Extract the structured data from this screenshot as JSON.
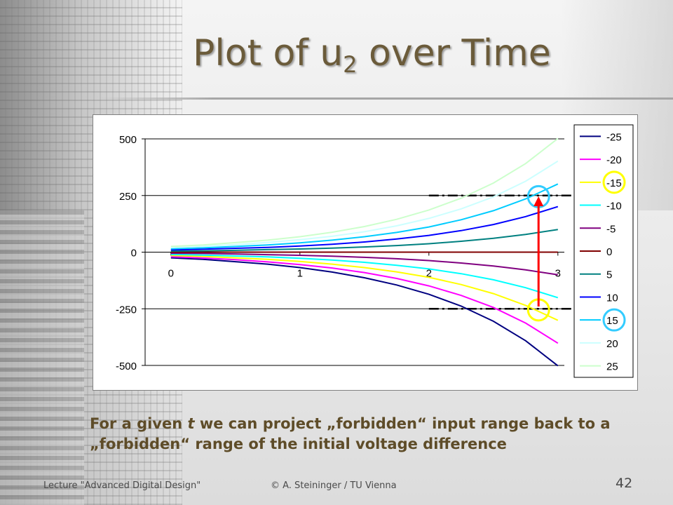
{
  "slide": {
    "title": "Plot of u",
    "title_subscript": "2",
    "title_suffix": " over Time",
    "caption_part1": "For a given ",
    "caption_italic": "t",
    "caption_part2": " we can project „forbidden“ input range back to a „forbidden“ range of the initial voltage difference",
    "footer_left": "Lecture \"Advanced Digital Design\"",
    "footer_center": "© A. Steininger / TU Vienna",
    "page_number": "42"
  },
  "chart_data": {
    "type": "line",
    "x": [
      0,
      0.25,
      0.5,
      0.75,
      1,
      1.25,
      1.5,
      1.75,
      2,
      2.25,
      2.5,
      2.75,
      3
    ],
    "xticks": [
      0,
      1,
      2,
      3
    ],
    "xtick_labels": [
      "0",
      "1",
      "2",
      "3"
    ],
    "yticks": [
      500,
      250,
      0,
      -250,
      -500
    ],
    "ytick_labels": [
      "500",
      "250",
      "0",
      "-250",
      "-500"
    ],
    "xlim": [
      -0.2,
      3.05
    ],
    "ylim": [
      -500,
      500
    ],
    "legend_position": "right",
    "series": [
      {
        "name": "-25",
        "color": "#000080",
        "values": [
          -25,
          -32,
          -42,
          -53,
          -68,
          -88,
          -113,
          -145,
          -186,
          -238,
          -305,
          -391,
          -502
        ]
      },
      {
        "name": "-20",
        "color": "#ff00ff",
        "values": [
          -20,
          -26,
          -33,
          -43,
          -55,
          -70,
          -90,
          -116,
          -149,
          -191,
          -244,
          -313,
          -402
        ]
      },
      {
        "name": "-15",
        "color": "#ffff00",
        "values": [
          -15,
          -19,
          -25,
          -32,
          -41,
          -53,
          -68,
          -87,
          -111,
          -143,
          -183,
          -235,
          -301
        ]
      },
      {
        "name": "-10",
        "color": "#00ffff",
        "values": [
          -10,
          -13,
          -17,
          -21,
          -27,
          -35,
          -45,
          -58,
          -74,
          -95,
          -122,
          -157,
          -201
        ]
      },
      {
        "name": "-5",
        "color": "#800080",
        "values": [
          -5,
          -6,
          -8,
          -11,
          -14,
          -18,
          -23,
          -29,
          -37,
          -48,
          -61,
          -78,
          -100
        ]
      },
      {
        "name": "0",
        "color": "#800000",
        "values": [
          0,
          0,
          0,
          0,
          0,
          0,
          0,
          0,
          0,
          0,
          0,
          0,
          0
        ]
      },
      {
        "name": "5",
        "color": "#008080",
        "values": [
          5,
          6,
          8,
          11,
          14,
          18,
          23,
          29,
          37,
          48,
          61,
          78,
          100
        ]
      },
      {
        "name": "10",
        "color": "#0000ff",
        "values": [
          10,
          13,
          17,
          21,
          27,
          35,
          45,
          58,
          74,
          95,
          122,
          157,
          201
        ]
      },
      {
        "name": "15",
        "color": "#00ccff",
        "values": [
          15,
          19,
          25,
          32,
          41,
          53,
          68,
          87,
          111,
          143,
          183,
          235,
          301
        ]
      },
      {
        "name": "20",
        "color": "#ccffff",
        "values": [
          20,
          26,
          33,
          43,
          55,
          70,
          90,
          116,
          149,
          191,
          244,
          313,
          402
        ]
      },
      {
        "name": "25",
        "color": "#ccffcc",
        "values": [
          25,
          32,
          42,
          53,
          68,
          88,
          113,
          145,
          186,
          238,
          305,
          391,
          502
        ]
      }
    ],
    "threshold_lines": [
      250,
      -250
    ],
    "arrow": {
      "x": 2.85,
      "from_y": -240,
      "to_y": 240,
      "color": "#ff0000"
    },
    "highlight_circles": [
      {
        "x": 2.85,
        "y": 245,
        "color": "#33ccff"
      },
      {
        "x": 2.85,
        "y": -255,
        "color": "#ffff00"
      }
    ],
    "highlighted_legend_entries": [
      {
        "name": "-15",
        "color": "#ffff00"
      },
      {
        "name": "15",
        "color": "#33ccff"
      }
    ]
  }
}
